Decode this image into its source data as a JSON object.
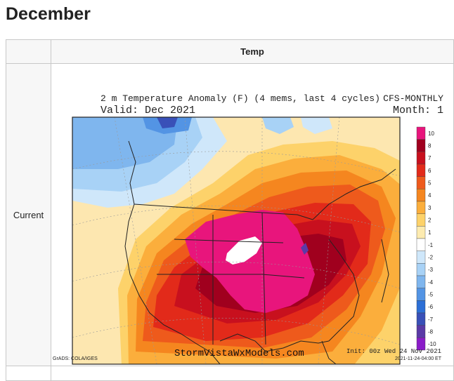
{
  "page": {
    "heading": "December"
  },
  "table": {
    "column_header": "Temp",
    "row_label": "Current"
  },
  "map": {
    "title": "2 m Temperature Anomaly (F) (4 mems, last 4 cycles)",
    "valid": "Valid: Dec 2021",
    "model": "CFS-MONTHLY",
    "month": "Month: 1",
    "source": "GrADS: COLA/IGES",
    "watermark": "StormVistaWxModels.com",
    "init": "Init: 00z Wed 24 Nov 2021",
    "issued": "2021-11-24-04:00 ET",
    "legend": {
      "labels": [
        "10",
        "8",
        "7",
        "6",
        "5",
        "4",
        "3",
        "2",
        "1",
        "-1",
        "-2",
        "-3",
        "-4",
        "-5",
        "-6",
        "-7",
        "-8",
        "-10"
      ],
      "colors": [
        "#e8157c",
        "#a0001e",
        "#c8101e",
        "#e22a1a",
        "#ee5a1c",
        "#f5861f",
        "#fbae3c",
        "#fdd26a",
        "#fdebb0",
        "#ffffff",
        "#cfe7fa",
        "#a8d2f6",
        "#7fb6ee",
        "#5394e4",
        "#2c6fd6",
        "#3950b8",
        "#5a3aa6",
        "#8a1cc8"
      ]
    }
  }
}
